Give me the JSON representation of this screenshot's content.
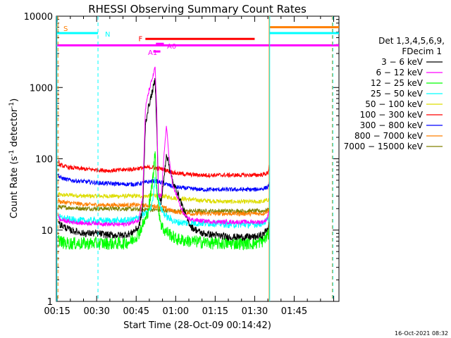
{
  "chart_data": {
    "type": "line",
    "title": "RHESSI Observing Summary Count Rates",
    "xlabel": "Start Time (28-Oct-09 00:14:42)",
    "ylabel_main": "Count Rate (s",
    "ylabel_exp1": "-1",
    "ylabel_mid": " detector",
    "ylabel_exp2": "-1",
    "ylabel_end": ")",
    "timestamp": "16-Oct-2021 08:32",
    "y_scale": "log",
    "ylim": [
      1,
      10000
    ],
    "xlim_minutes": [
      14.7,
      122
    ],
    "x_ticks": [
      {
        "label": "00:15",
        "min": 15
      },
      {
        "label": "00:30",
        "min": 30
      },
      {
        "label": "00:45",
        "min": 45
      },
      {
        "label": "01:00",
        "min": 60
      },
      {
        "label": "01:15",
        "min": 75
      },
      {
        "label": "01:30",
        "min": 90
      },
      {
        "label": "01:45",
        "min": 105
      }
    ],
    "y_ticks": [
      {
        "label": "1",
        "value": 1
      },
      {
        "label": "10",
        "value": 10
      },
      {
        "label": "100",
        "value": 100
      },
      {
        "label": "1000",
        "value": 1000
      },
      {
        "label": "10000",
        "value": 10000
      }
    ],
    "legend": {
      "placement": "right",
      "header": [
        "Det 1,3,4,5,6,9,",
        "FDecim 1"
      ],
      "entries": [
        {
          "label": "3 − 6 keV",
          "color": "#000000"
        },
        {
          "label": "6 − 12 keV",
          "color": "#ff00ff"
        },
        {
          "label": "12 − 25 keV",
          "color": "#00ff00"
        },
        {
          "label": "25 − 50 keV",
          "color": "#00ffff"
        },
        {
          "label": "50 − 100 keV",
          "color": "#dddd00"
        },
        {
          "label": "100 − 300 keV",
          "color": "#ff0000"
        },
        {
          "label": "300 − 800 keV",
          "color": "#0000ff"
        },
        {
          "label": "800 − 7000 keV",
          "color": "#ff7f00"
        },
        {
          "label": "7000 − 15000 keV",
          "color": "#808000"
        }
      ]
    },
    "series": [
      {
        "name": "3 − 6 keV",
        "color": "#000000",
        "points": [
          [
            15.5,
            14
          ],
          [
            16,
            12
          ],
          [
            20,
            10
          ],
          [
            25,
            9
          ],
          [
            30,
            9
          ],
          [
            35,
            8.5
          ],
          [
            40,
            8.5
          ],
          [
            43,
            9
          ],
          [
            46,
            11
          ],
          [
            47.5,
            20
          ],
          [
            48.5,
            300
          ],
          [
            49.5,
            500
          ],
          [
            50.5,
            700
          ],
          [
            51.5,
            1000
          ],
          [
            52.2,
            1300
          ],
          [
            52.8,
            300
          ],
          [
            53.5,
            30
          ],
          [
            54.5,
            25
          ],
          [
            55.5,
            50
          ],
          [
            56.5,
            120
          ],
          [
            57.5,
            80
          ],
          [
            59,
            45
          ],
          [
            60.5,
            35
          ],
          [
            62,
            25
          ],
          [
            64,
            15
          ],
          [
            66,
            11
          ],
          [
            70,
            9
          ],
          [
            75,
            8.5
          ],
          [
            80,
            8
          ],
          [
            85,
            8
          ],
          [
            90,
            8
          ],
          [
            93,
            8.5
          ],
          [
            94.5,
            10
          ],
          [
            95.5,
            12
          ]
        ]
      },
      {
        "name": "6 − 12 keV",
        "color": "#ff00ff",
        "points": [
          [
            15.5,
            16
          ],
          [
            16,
            14
          ],
          [
            20,
            13
          ],
          [
            25,
            12.5
          ],
          [
            30,
            12.5
          ],
          [
            35,
            12
          ],
          [
            40,
            12
          ],
          [
            43,
            12.5
          ],
          [
            46,
            14
          ],
          [
            47.5,
            30
          ],
          [
            48.5,
            500
          ],
          [
            49.5,
            800
          ],
          [
            50.5,
            1100
          ],
          [
            51.5,
            1500
          ],
          [
            52.2,
            1900
          ],
          [
            52.8,
            500
          ],
          [
            53.5,
            30
          ],
          [
            54.5,
            30
          ],
          [
            55.5,
            100
          ],
          [
            56.5,
            300
          ],
          [
            57.5,
            100
          ],
          [
            59,
            40
          ],
          [
            60.5,
            30
          ],
          [
            62,
            20
          ],
          [
            64,
            15
          ],
          [
            66,
            14
          ],
          [
            70,
            13.5
          ],
          [
            75,
            13
          ],
          [
            80,
            13
          ],
          [
            85,
            13
          ],
          [
            90,
            13
          ],
          [
            93,
            13
          ],
          [
            94.5,
            14
          ],
          [
            95.5,
            18
          ]
        ]
      },
      {
        "name": "12 − 25 keV",
        "color": "#00ff00",
        "points": [
          [
            15.5,
            8
          ],
          [
            16,
            7
          ],
          [
            18,
            6.5
          ],
          [
            20,
            6.5
          ],
          [
            25,
            6.5
          ],
          [
            30,
            6.5
          ],
          [
            35,
            6.5
          ],
          [
            40,
            6.5
          ],
          [
            43,
            7
          ],
          [
            46,
            9
          ],
          [
            47.5,
            12
          ],
          [
            49,
            15
          ],
          [
            50.5,
            30
          ],
          [
            51.5,
            60
          ],
          [
            52.2,
            130
          ],
          [
            52.8,
            40
          ],
          [
            53.5,
            20
          ],
          [
            54.5,
            12
          ],
          [
            55.5,
            10
          ],
          [
            57.5,
            9
          ],
          [
            60,
            7.5
          ],
          [
            65,
            7
          ],
          [
            70,
            6.8
          ],
          [
            75,
            6.5
          ],
          [
            80,
            6.5
          ],
          [
            85,
            6.5
          ],
          [
            90,
            6.5
          ],
          [
            93,
            7
          ],
          [
            94.5,
            8
          ],
          [
            95.5,
            9
          ]
        ]
      },
      {
        "name": "25 − 50 keV",
        "color": "#00ffff",
        "points": [
          [
            15.5,
            16
          ],
          [
            16,
            15
          ],
          [
            20,
            14
          ],
          [
            25,
            13.5
          ],
          [
            30,
            13.5
          ],
          [
            35,
            13.5
          ],
          [
            40,
            13.5
          ],
          [
            44,
            14
          ],
          [
            47,
            16
          ],
          [
            49,
            17
          ],
          [
            50.5,
            20
          ],
          [
            51.5,
            30
          ],
          [
            52.2,
            55
          ],
          [
            53,
            35
          ],
          [
            54,
            22
          ],
          [
            55.5,
            17
          ],
          [
            57,
            15
          ],
          [
            60,
            13
          ],
          [
            65,
            12.5
          ],
          [
            70,
            12.5
          ],
          [
            75,
            12.5
          ],
          [
            80,
            12
          ],
          [
            85,
            12
          ],
          [
            90,
            12
          ],
          [
            93,
            12.5
          ],
          [
            95.5,
            14
          ]
        ]
      },
      {
        "name": "50 − 100 keV",
        "color": "#dddd00",
        "points": [
          [
            15.5,
            33
          ],
          [
            16,
            31
          ],
          [
            20,
            31
          ],
          [
            25,
            30
          ],
          [
            30,
            30
          ],
          [
            35,
            30
          ],
          [
            40,
            30
          ],
          [
            45,
            30
          ],
          [
            50,
            30
          ],
          [
            52,
            31
          ],
          [
            55,
            30
          ],
          [
            60,
            28
          ],
          [
            65,
            27
          ],
          [
            70,
            26
          ],
          [
            75,
            25.5
          ],
          [
            80,
            25
          ],
          [
            85,
            25
          ],
          [
            90,
            25
          ],
          [
            93,
            25
          ],
          [
            95.5,
            27
          ]
        ]
      },
      {
        "name": "100 − 300 keV",
        "color": "#ff0000",
        "points": [
          [
            15.5,
            92
          ],
          [
            16,
            82
          ],
          [
            18,
            78
          ],
          [
            20,
            75
          ],
          [
            25,
            72
          ],
          [
            30,
            70
          ],
          [
            35,
            68
          ],
          [
            40,
            70
          ],
          [
            44,
            72
          ],
          [
            48,
            75
          ],
          [
            51,
            76
          ],
          [
            53,
            74
          ],
          [
            55,
            72
          ],
          [
            58,
            66
          ],
          [
            60,
            63
          ],
          [
            63,
            61
          ],
          [
            66,
            60
          ],
          [
            70,
            59
          ],
          [
            75,
            59
          ],
          [
            80,
            59
          ],
          [
            85,
            59
          ],
          [
            90,
            59
          ],
          [
            93,
            60
          ],
          [
            95,
            63
          ],
          [
            95.5,
            80
          ]
        ]
      },
      {
        "name": "300 − 800 keV",
        "color": "#0000ff",
        "points": [
          [
            15.5,
            60
          ],
          [
            16,
            55
          ],
          [
            18,
            52
          ],
          [
            20,
            50
          ],
          [
            25,
            48
          ],
          [
            30,
            46
          ],
          [
            35,
            45
          ],
          [
            40,
            44
          ],
          [
            45,
            44
          ],
          [
            48,
            46
          ],
          [
            50,
            48
          ],
          [
            52,
            49
          ],
          [
            55,
            46
          ],
          [
            58,
            42
          ],
          [
            60,
            40
          ],
          [
            63,
            39
          ],
          [
            66,
            38
          ],
          [
            70,
            37
          ],
          [
            75,
            37
          ],
          [
            80,
            37
          ],
          [
            85,
            37
          ],
          [
            90,
            37
          ],
          [
            93,
            38
          ],
          [
            95,
            40
          ],
          [
            95.5,
            45
          ]
        ]
      },
      {
        "name": "800 − 7000 keV",
        "color": "#ff7f00",
        "points": [
          [
            15.5,
            27
          ],
          [
            16,
            25
          ],
          [
            20,
            24
          ],
          [
            25,
            23
          ],
          [
            30,
            22.5
          ],
          [
            35,
            22.5
          ],
          [
            40,
            22.5
          ],
          [
            45,
            22.5
          ],
          [
            50,
            22
          ],
          [
            55,
            21
          ],
          [
            58,
            19
          ],
          [
            60,
            18
          ],
          [
            63,
            17.5
          ],
          [
            66,
            17
          ],
          [
            70,
            17
          ],
          [
            75,
            17
          ],
          [
            80,
            17
          ],
          [
            85,
            17
          ],
          [
            90,
            17
          ],
          [
            93,
            17
          ],
          [
            95.5,
            19
          ]
        ]
      },
      {
        "name": "7000 − 15000 keV",
        "color": "#808000",
        "points": [
          [
            15.5,
            22
          ],
          [
            16,
            21
          ],
          [
            20,
            20.5
          ],
          [
            25,
            20
          ],
          [
            30,
            20
          ],
          [
            35,
            20
          ],
          [
            40,
            20
          ],
          [
            45,
            19.5
          ],
          [
            50,
            19.5
          ],
          [
            55,
            19
          ],
          [
            60,
            18.5
          ],
          [
            65,
            18.5
          ],
          [
            70,
            18.5
          ],
          [
            75,
            18.5
          ],
          [
            80,
            18.5
          ],
          [
            85,
            18.5
          ],
          [
            90,
            18.5
          ],
          [
            93,
            18.5
          ],
          [
            95.5,
            19.5
          ]
        ]
      }
    ],
    "flag_bars": [
      {
        "label": "S",
        "color": "#ff7f00",
        "start_min": 14.7,
        "end_min": 15.3,
        "y": 7000
      },
      {
        "label": "N",
        "color": "#00ffff",
        "start_min": 15,
        "end_min": 30.5,
        "y": 5800
      },
      {
        "label": "F",
        "color": "#ff0000",
        "start_min": 48.5,
        "end_min": 90,
        "y": 4800
      },
      {
        "label": "A0",
        "color": "#ff00ff",
        "start_min": 52.5,
        "end_min": 55.5,
        "y": 4100
      },
      {
        "label": "A1",
        "color": "#ff00ff",
        "start_min": 51.5,
        "end_min": 54.2,
        "y": 3200
      },
      {
        "label": "",
        "color": "#ff00ff",
        "start_min": 14.7,
        "end_min": 122,
        "y": 3900
      },
      {
        "label": "",
        "color": "#ff7f00",
        "start_min": 95.5,
        "end_min": 122,
        "y": 7000
      },
      {
        "label": "",
        "color": "#00ffff",
        "start_min": 95.5,
        "end_min": 122,
        "y": 5800
      }
    ],
    "vertical_markers": [
      {
        "min": 15.3,
        "color": "#ff7f00",
        "style": "dashed"
      },
      {
        "min": 30.5,
        "color": "#00ffff",
        "style": "dashed"
      },
      {
        "min": 95.5,
        "color": "#ff7f00",
        "style": "solid"
      },
      {
        "min": 95.7,
        "color": "#00ffff",
        "style": "solid"
      },
      {
        "min": 119.5,
        "color": "#ff7f00",
        "style": "dashed"
      },
      {
        "min": 119.7,
        "color": "#00ffff",
        "style": "dashed"
      },
      {
        "min": 14.9,
        "color": "#00ffff",
        "style": "solid"
      }
    ]
  }
}
